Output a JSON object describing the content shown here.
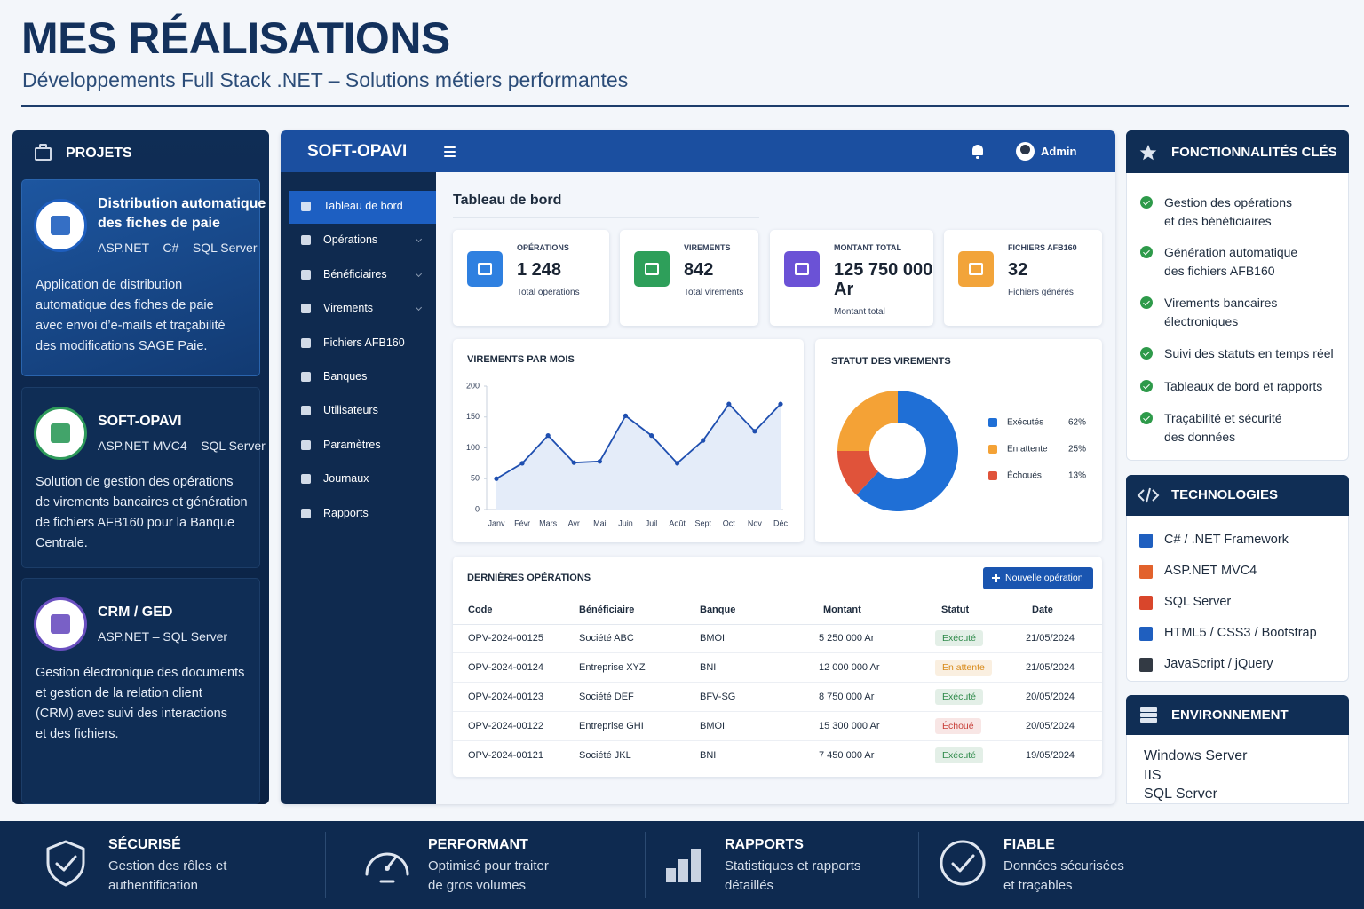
{
  "header": {
    "title": "MES RÉALISATIONS",
    "subtitle": "Développements Full Stack .NET – Solutions métiers performantes"
  },
  "projects": {
    "title": "PROJETS",
    "items": [
      {
        "title": [
          "Distribution automatique",
          "des fiches de paie"
        ],
        "tech": "ASP.NET – C# – SQL Server",
        "description": [
          "Application de distribution",
          "automatique des fiches de paie",
          "avec envoi d’e-mails et traçabilité",
          "des modifications SAGE Paie."
        ],
        "color": "#1f5fbf"
      },
      {
        "title": [
          "SOFT-OPAVI"
        ],
        "tech": "ASP.NET MVC4 – SQL Server",
        "description": [
          "Solution de gestion des opérations",
          "de virements bancaires et génération",
          "de fichiers AFB160 pour la Banque",
          "Centrale."
        ],
        "color": "#2e9a5a"
      },
      {
        "title": [
          "CRM / GED"
        ],
        "tech": "ASP.NET – SQL Server",
        "description": [
          "Gestion électronique des documents",
          "et gestion de la relation client",
          "(CRM) avec suivi des interactions",
          "et des fichiers."
        ],
        "color": "#6a4fc0"
      }
    ]
  },
  "app": {
    "brand": "SOFT-OPAVI",
    "user": "Admin",
    "nav": [
      "Tableau de bord",
      "Opérations",
      "Bénéficiaires",
      "Virements",
      "Fichiers AFB160",
      "Banques",
      "Utilisateurs",
      "Paramètres",
      "Journaux",
      "Rapports"
    ],
    "page_title": "Tableau de bord",
    "kpis": [
      {
        "label": "OPÉRATIONS",
        "value": "1 248",
        "caption": "Total opérations",
        "color": "#2f80e0"
      },
      {
        "label": "VIREMENTS",
        "value": "842",
        "caption": "Total virements",
        "color": "#2e9f5a"
      },
      {
        "label": "MONTANT TOTAL",
        "value": "125 750 000 Ar",
        "caption": "Montant total",
        "color": "#6b52d6"
      },
      {
        "label": "FICHIERS AFB160",
        "value": "32",
        "caption": "Fichiers générés",
        "color": "#f2a43a"
      }
    ]
  },
  "chart_data": [
    {
      "type": "line",
      "title": "VIREMENTS PAR MOIS",
      "categories": [
        "Janv",
        "Févr",
        "Mars",
        "Avr",
        "Mai",
        "Juin",
        "Juil",
        "Août",
        "Sept",
        "Oct",
        "Nov",
        "Déc"
      ],
      "values": [
        50,
        75,
        120,
        76,
        78,
        152,
        120,
        75,
        112,
        171,
        127,
        171
      ],
      "color": "#1f4fb0",
      "area_color": "#e4ecf9",
      "ylim": [
        0,
        200
      ],
      "yticks": [
        0,
        50,
        100,
        150,
        200
      ],
      "grid": false
    },
    {
      "type": "pie",
      "title": "STATUT DES VIREMENTS",
      "categories": [
        "Exécutés",
        "En attente",
        "Échoués"
      ],
      "values": [
        62,
        25,
        13
      ],
      "value_labels": [
        "62%",
        "25%",
        "13%"
      ],
      "colors": [
        "#1f6fd6",
        "#f4a236",
        "#e0533a"
      ],
      "legend": "right"
    }
  ],
  "table": {
    "title": "DERNIÈRES OPÉRATIONS",
    "button": "Nouvelle opération",
    "columns": [
      "Code",
      "Bénéficiaire",
      "Banque",
      "Montant",
      "Statut",
      "Date"
    ],
    "rows": [
      {
        "cells": [
          "OPV-2024-00125",
          "Société ABC",
          "BMOI",
          "5 250 000 Ar",
          "Exécuté",
          "21/05/2024"
        ],
        "status_color": "#2e8a4a"
      },
      {
        "cells": [
          "OPV-2024-00124",
          "Entreprise XYZ",
          "BNI",
          "12 000 000 Ar",
          "En attente",
          "21/05/2024"
        ],
        "status_color": "#d88a1a"
      },
      {
        "cells": [
          "OPV-2024-00123",
          "Société DEF",
          "BFV-SG",
          "8 750 000 Ar",
          "Exécuté",
          "20/05/2024"
        ],
        "status_color": "#2e8a4a"
      },
      {
        "cells": [
          "OPV-2024-00122",
          "Entreprise GHI",
          "BMOI",
          "15 300 000 Ar",
          "Échoué",
          "20/05/2024"
        ],
        "status_color": "#c8403a"
      },
      {
        "cells": [
          "OPV-2024-00121",
          "Société JKL",
          "BNI",
          "7 450 000 Ar",
          "Exécuté",
          "19/05/2024"
        ],
        "status_color": "#2e8a4a"
      }
    ]
  },
  "features": {
    "title": "FONCTIONNALITÉS CLÉS",
    "items": [
      [
        "Gestion des opérations",
        "et des bénéficiaires"
      ],
      [
        "Génération automatique",
        "des fichiers AFB160"
      ],
      [
        "Virements bancaires",
        "électroniques"
      ],
      [
        "Suivi des statuts en temps réel"
      ],
      [
        "Tableaux de bord et rapports"
      ],
      [
        "Traçabilité et sécurité",
        "des données"
      ]
    ]
  },
  "technologies": {
    "title": "TECHNOLOGIES",
    "items": [
      {
        "label": "C# / .NET Framework",
        "color": "#1f5fbf"
      },
      {
        "label": "ASP.NET MVC4",
        "color": "#e2622c"
      },
      {
        "label": "SQL Server",
        "color": "#d9462b"
      },
      {
        "label": "HTML5 / CSS3 / Bootstrap",
        "color": "#1f5fbf"
      },
      {
        "label": "JavaScript / jQuery",
        "color": "#333a44"
      }
    ]
  },
  "environment": {
    "title": "ENVIRONNEMENT",
    "items": [
      "Windows Server",
      "IIS",
      "SQL Server"
    ]
  },
  "footer": [
    {
      "title": "SÉCURISÉ",
      "text": [
        "Gestion des rôles et",
        "authentification"
      ]
    },
    {
      "title": "PERFORMANT",
      "text": [
        "Optimisé pour traiter",
        "de gros volumes"
      ]
    },
    {
      "title": "RAPPORTS",
      "text": [
        "Statistiques et rapports",
        "détaillés"
      ]
    },
    {
      "title": "FIABLE",
      "text": [
        "Données sécurisées",
        "et traçables"
      ]
    }
  ]
}
